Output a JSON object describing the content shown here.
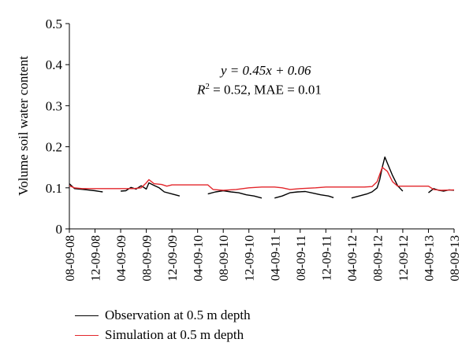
{
  "chart_data": {
    "type": "line",
    "ylabel": "Volume soil water content",
    "xlabel": "",
    "ylim": [
      0,
      0.5
    ],
    "yticks": [
      "0",
      "0.1",
      "0.2",
      "0.3",
      "0.4",
      "0.5"
    ],
    "xticks": [
      "08-09-08",
      "12-09-08",
      "04-09-09",
      "08-09-09",
      "12-09-09",
      "04-09-10",
      "08-09-10",
      "12-09-10",
      "04-09-11",
      "08-09-11",
      "12-09-11",
      "04-09-12",
      "08-09-12",
      "12-09-12",
      "04-09-13",
      "08-09-13"
    ],
    "annotation": {
      "equation": "y = 0.45x + 0.06",
      "r2_label": "R",
      "r2_sup": "2",
      "r2_rest": " = 0.52, MAE = 0.01"
    },
    "series": [
      {
        "name": "Observation at 0.5 m depth",
        "color": "#000000",
        "segments": [
          [
            [
              0.0,
              0.11
            ],
            [
              0.2,
              0.098
            ],
            [
              0.4,
              0.097
            ],
            [
              0.7,
              0.095
            ],
            [
              1.0,
              0.093
            ],
            [
              1.3,
              0.09
            ]
          ],
          [
            [
              2.0,
              0.092
            ],
            [
              2.2,
              0.093
            ],
            [
              2.4,
              0.101
            ],
            [
              2.6,
              0.097
            ],
            [
              2.8,
              0.105
            ],
            [
              3.0,
              0.097
            ],
            [
              3.1,
              0.112
            ],
            [
              3.3,
              0.106
            ],
            [
              3.5,
              0.1
            ],
            [
              3.7,
              0.09
            ],
            [
              4.0,
              0.085
            ],
            [
              4.3,
              0.08
            ]
          ],
          [
            [
              5.4,
              0.085
            ],
            [
              5.7,
              0.09
            ],
            [
              6.0,
              0.093
            ],
            [
              6.3,
              0.09
            ],
            [
              6.6,
              0.088
            ],
            [
              6.9,
              0.083
            ],
            [
              7.2,
              0.08
            ],
            [
              7.5,
              0.075
            ]
          ],
          [
            [
              8.0,
              0.075
            ],
            [
              8.3,
              0.08
            ],
            [
              8.6,
              0.088
            ],
            [
              8.9,
              0.09
            ],
            [
              9.2,
              0.091
            ],
            [
              9.5,
              0.087
            ],
            [
              9.8,
              0.083
            ],
            [
              10.1,
              0.08
            ],
            [
              10.3,
              0.076
            ]
          ],
          [
            [
              11.0,
              0.075
            ],
            [
              11.3,
              0.08
            ],
            [
              11.6,
              0.085
            ],
            [
              11.8,
              0.09
            ],
            [
              12.0,
              0.1
            ],
            [
              12.1,
              0.12
            ],
            [
              12.2,
              0.15
            ],
            [
              12.3,
              0.175
            ],
            [
              12.4,
              0.16
            ],
            [
              12.6,
              0.13
            ],
            [
              12.8,
              0.105
            ],
            [
              13.0,
              0.092
            ]
          ],
          [
            [
              14.0,
              0.088
            ],
            [
              14.2,
              0.098
            ],
            [
              14.4,
              0.094
            ],
            [
              14.6,
              0.092
            ],
            [
              14.8,
              0.095
            ],
            [
              15.0,
              0.094
            ]
          ]
        ]
      },
      {
        "name": "Simulation at 0.5 m depth",
        "color": "#e3262b",
        "segments": [
          [
            [
              0.0,
              0.105
            ],
            [
              0.2,
              0.1
            ],
            [
              0.5,
              0.098
            ],
            [
              1.0,
              0.098
            ],
            [
              1.5,
              0.098
            ],
            [
              2.0,
              0.098
            ],
            [
              2.5,
              0.098
            ],
            [
              2.8,
              0.1
            ],
            [
              3.0,
              0.112
            ],
            [
              3.1,
              0.12
            ],
            [
              3.3,
              0.11
            ],
            [
              3.6,
              0.108
            ],
            [
              3.8,
              0.104
            ],
            [
              4.0,
              0.107
            ],
            [
              4.5,
              0.107
            ],
            [
              5.0,
              0.107
            ],
            [
              5.4,
              0.107
            ],
            [
              5.6,
              0.096
            ],
            [
              6.0,
              0.094
            ],
            [
              6.5,
              0.096
            ],
            [
              7.0,
              0.1
            ],
            [
              7.5,
              0.102
            ],
            [
              8.0,
              0.102
            ],
            [
              8.3,
              0.1
            ],
            [
              8.6,
              0.096
            ],
            [
              9.0,
              0.098
            ],
            [
              9.3,
              0.099
            ],
            [
              9.6,
              0.1
            ],
            [
              10.0,
              0.102
            ],
            [
              10.5,
              0.102
            ],
            [
              11.0,
              0.102
            ],
            [
              11.5,
              0.102
            ],
            [
              11.8,
              0.103
            ],
            [
              12.0,
              0.115
            ],
            [
              12.2,
              0.15
            ],
            [
              12.4,
              0.14
            ],
            [
              12.6,
              0.115
            ],
            [
              12.8,
              0.104
            ],
            [
              13.0,
              0.104
            ],
            [
              13.5,
              0.104
            ],
            [
              14.0,
              0.104
            ],
            [
              14.2,
              0.096
            ],
            [
              14.5,
              0.094
            ],
            [
              15.0,
              0.095
            ]
          ]
        ]
      }
    ]
  }
}
